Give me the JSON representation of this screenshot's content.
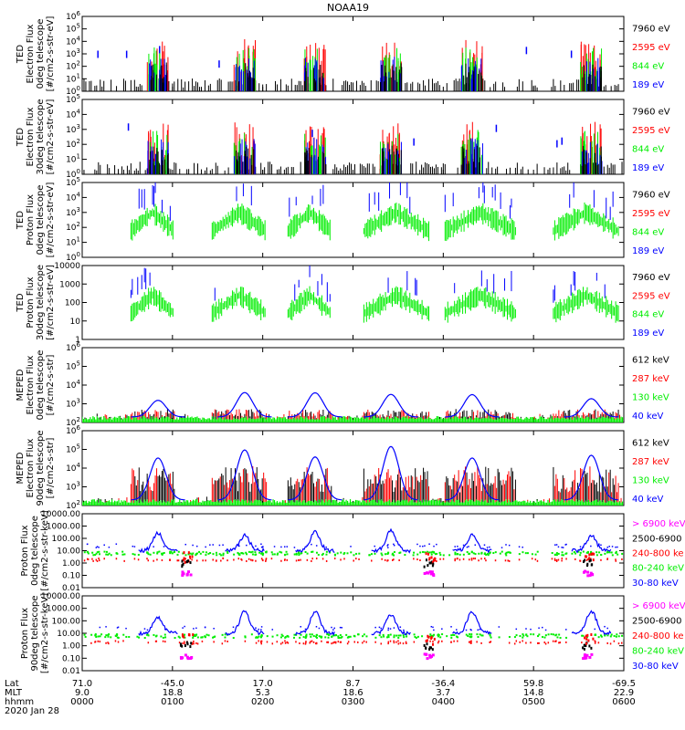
{
  "title": "NOAA19",
  "colors": {
    "black": "#000000",
    "red": "#ff0000",
    "green": "#00ee00",
    "blue": "#0000ff",
    "magenta": "#ff00ff"
  },
  "chart_data": [
    {
      "type": "scatter",
      "ylabel": [
        "TED",
        "Electron Flux",
        "0deg telescope",
        "[#/cm2-s-str-eV]"
      ],
      "yscale": "log",
      "yticks": [
        "10^0",
        "10^1",
        "10^2",
        "10^3",
        "10^4",
        "10^5",
        "10^6"
      ],
      "ylim": [
        0,
        6
      ],
      "legend": [
        {
          "label": "7960 eV",
          "color": "black"
        },
        {
          "label": "2595 eV",
          "color": "red"
        },
        {
          "label": "844 eV",
          "color": "green"
        },
        {
          "label": "189 eV",
          "color": "blue"
        }
      ]
    },
    {
      "type": "scatter",
      "ylabel": [
        "TED",
        "Electron Flux",
        "30deg telescope",
        "[#/cm2-s-str-eV]"
      ],
      "yscale": "log",
      "yticks": [
        "10^0",
        "10^1",
        "10^2",
        "10^3",
        "10^4",
        "10^5"
      ],
      "ylim": [
        0,
        5
      ],
      "legend": [
        {
          "label": "7960 eV",
          "color": "black"
        },
        {
          "label": "2595 eV",
          "color": "red"
        },
        {
          "label": "844 eV",
          "color": "green"
        },
        {
          "label": "189 eV",
          "color": "blue"
        }
      ]
    },
    {
      "type": "scatter",
      "ylabel": [
        "TED",
        "Proton Flux",
        "0deg telescope",
        "[#/cm2-s-str-eV]"
      ],
      "yscale": "log",
      "yticks": [
        "10^0",
        "10^1",
        "10^2",
        "10^3",
        "10^4",
        "10^5"
      ],
      "ylim": [
        0,
        5
      ],
      "legend": [
        {
          "label": "7960 eV",
          "color": "black"
        },
        {
          "label": "2595 eV",
          "color": "red"
        },
        {
          "label": "844 eV",
          "color": "green"
        },
        {
          "label": "189 eV",
          "color": "blue"
        }
      ]
    },
    {
      "type": "scatter",
      "ylabel": [
        "TED",
        "Proton Flux",
        "30deg telescope",
        "[#/cm2-s-str-eV]"
      ],
      "yscale": "log",
      "yticks": [
        "1",
        "10",
        "100",
        "1000",
        "10000"
      ],
      "ylim": [
        0,
        4
      ],
      "legend": [
        {
          "label": "7960 eV",
          "color": "black"
        },
        {
          "label": "2595 eV",
          "color": "red"
        },
        {
          "label": "844 eV",
          "color": "green"
        },
        {
          "label": "189 eV",
          "color": "blue"
        }
      ]
    },
    {
      "type": "scatter",
      "ylabel": [
        "MEPED",
        "Electron Flux",
        "0deg telescope",
        "[#/cm2-s-str]"
      ],
      "yscale": "log",
      "yticks": [
        "10^2",
        "10^3",
        "10^4",
        "10^5",
        "10^6"
      ],
      "ylim": [
        2,
        6
      ],
      "legend": [
        {
          "label": "612 keV",
          "color": "black"
        },
        {
          "label": "287 keV",
          "color": "red"
        },
        {
          "label": "130 keV",
          "color": "green"
        },
        {
          "label": "40 keV",
          "color": "blue"
        }
      ]
    },
    {
      "type": "scatter",
      "ylabel": [
        "MEPED",
        "Electron Flux",
        "90deg telescope",
        "[#/cm2-s-str]"
      ],
      "yscale": "log",
      "yticks": [
        "10^2",
        "10^3",
        "10^4",
        "10^5",
        "10^6"
      ],
      "ylim": [
        2,
        6
      ],
      "legend": [
        {
          "label": "612 keV",
          "color": "black"
        },
        {
          "label": "287 keV",
          "color": "red"
        },
        {
          "label": "130 keV",
          "color": "green"
        },
        {
          "label": "40 keV",
          "color": "blue"
        }
      ]
    },
    {
      "type": "scatter",
      "ylabel": [
        "Proton Flux",
        "0deg telescope",
        "[#/cm2-s-str-keV]"
      ],
      "yscale": "log",
      "yticks": [
        "0.01",
        "0.10",
        "1.00",
        "10.00",
        "100.00",
        "1000.00",
        "10000.00"
      ],
      "ylim": [
        -2,
        4
      ],
      "legend": [
        {
          "label": "> 6900 keV",
          "color": "magenta"
        },
        {
          "label": "2500-6900",
          "color": "black"
        },
        {
          "label": "240-800 ke",
          "color": "red"
        },
        {
          "label": "80-240 keV",
          "color": "green"
        },
        {
          "label": "30-80 keV",
          "color": "blue"
        }
      ]
    },
    {
      "type": "scatter",
      "ylabel": [
        "Proton Flux",
        "90deg telescope",
        "[#/cm2-s-str-keV]"
      ],
      "yscale": "log",
      "yticks": [
        "0.01",
        "0.10",
        "1.00",
        "10.00",
        "100.00",
        "1000.00",
        "10000.00"
      ],
      "ylim": [
        -2,
        4
      ],
      "legend": [
        {
          "label": "> 6900 keV",
          "color": "magenta"
        },
        {
          "label": "2500-6900",
          "color": "black"
        },
        {
          "label": "240-800 ke",
          "color": "red"
        },
        {
          "label": "80-240 keV",
          "color": "green"
        },
        {
          "label": "30-80 keV",
          "color": "blue"
        }
      ]
    }
  ],
  "xaxis": {
    "row_labels": [
      "Lat",
      "MLT",
      "hhmm",
      "2020 Jan 28"
    ],
    "ticks": [
      {
        "lat": "71.0",
        "mlt": "9.0",
        "hhmm": "0000"
      },
      {
        "lat": "-45.0",
        "mlt": "18.8",
        "hhmm": "0100"
      },
      {
        "lat": "17.0",
        "mlt": "5.3",
        "hhmm": "0200"
      },
      {
        "lat": "8.7",
        "mlt": "18.6",
        "hhmm": "0300"
      },
      {
        "lat": "-36.4",
        "mlt": "3.7",
        "hhmm": "0400"
      },
      {
        "lat": "59.8",
        "mlt": "14.8",
        "hhmm": "0500"
      },
      {
        "lat": "-69.5",
        "mlt": "22.9",
        "hhmm": "0600"
      }
    ]
  }
}
